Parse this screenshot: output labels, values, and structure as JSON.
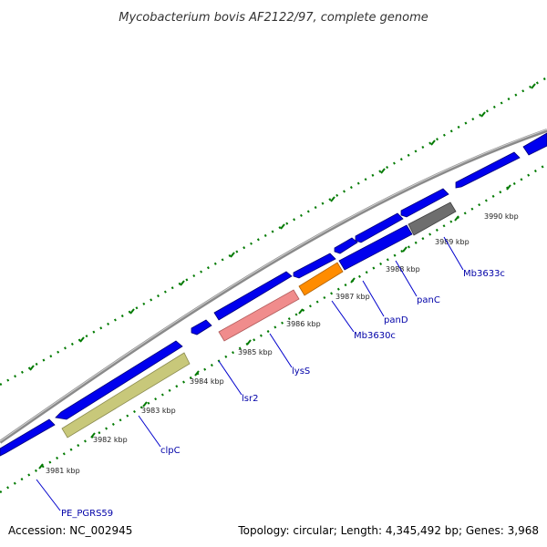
{
  "title": "Mycobacterium bovis AF2122/97, complete genome",
  "footer": {
    "accession": "Accession: NC_002945",
    "summary": "Topology: circular; Length: 4,345,492 bp; Genes: 3,968"
  },
  "scale_ticks": [
    "3981 kbp",
    "3982 kbp",
    "3983 kbp",
    "3984 kbp",
    "3985 kbp",
    "3986 kbp",
    "3987 kbp",
    "3988 kbp",
    "3989 kbp",
    "3990 kbp"
  ],
  "gene_labels": [
    "PE_PGRS59",
    "clpC",
    "lsr2",
    "lysS",
    "Mb3630c",
    "panD",
    "panC",
    "Mb3633c"
  ],
  "colors": {
    "backbone": "#8a8a8a",
    "cds_blue": "#0000ee",
    "clpC_olive": "#c8c87a",
    "lysS_pink": "#f08c8c",
    "Mb3630c_orange": "#ff8c00",
    "Mb3633c_gray": "#6e6e6e",
    "tick_green": "#007a00",
    "label_blue": "#0000a8"
  }
}
